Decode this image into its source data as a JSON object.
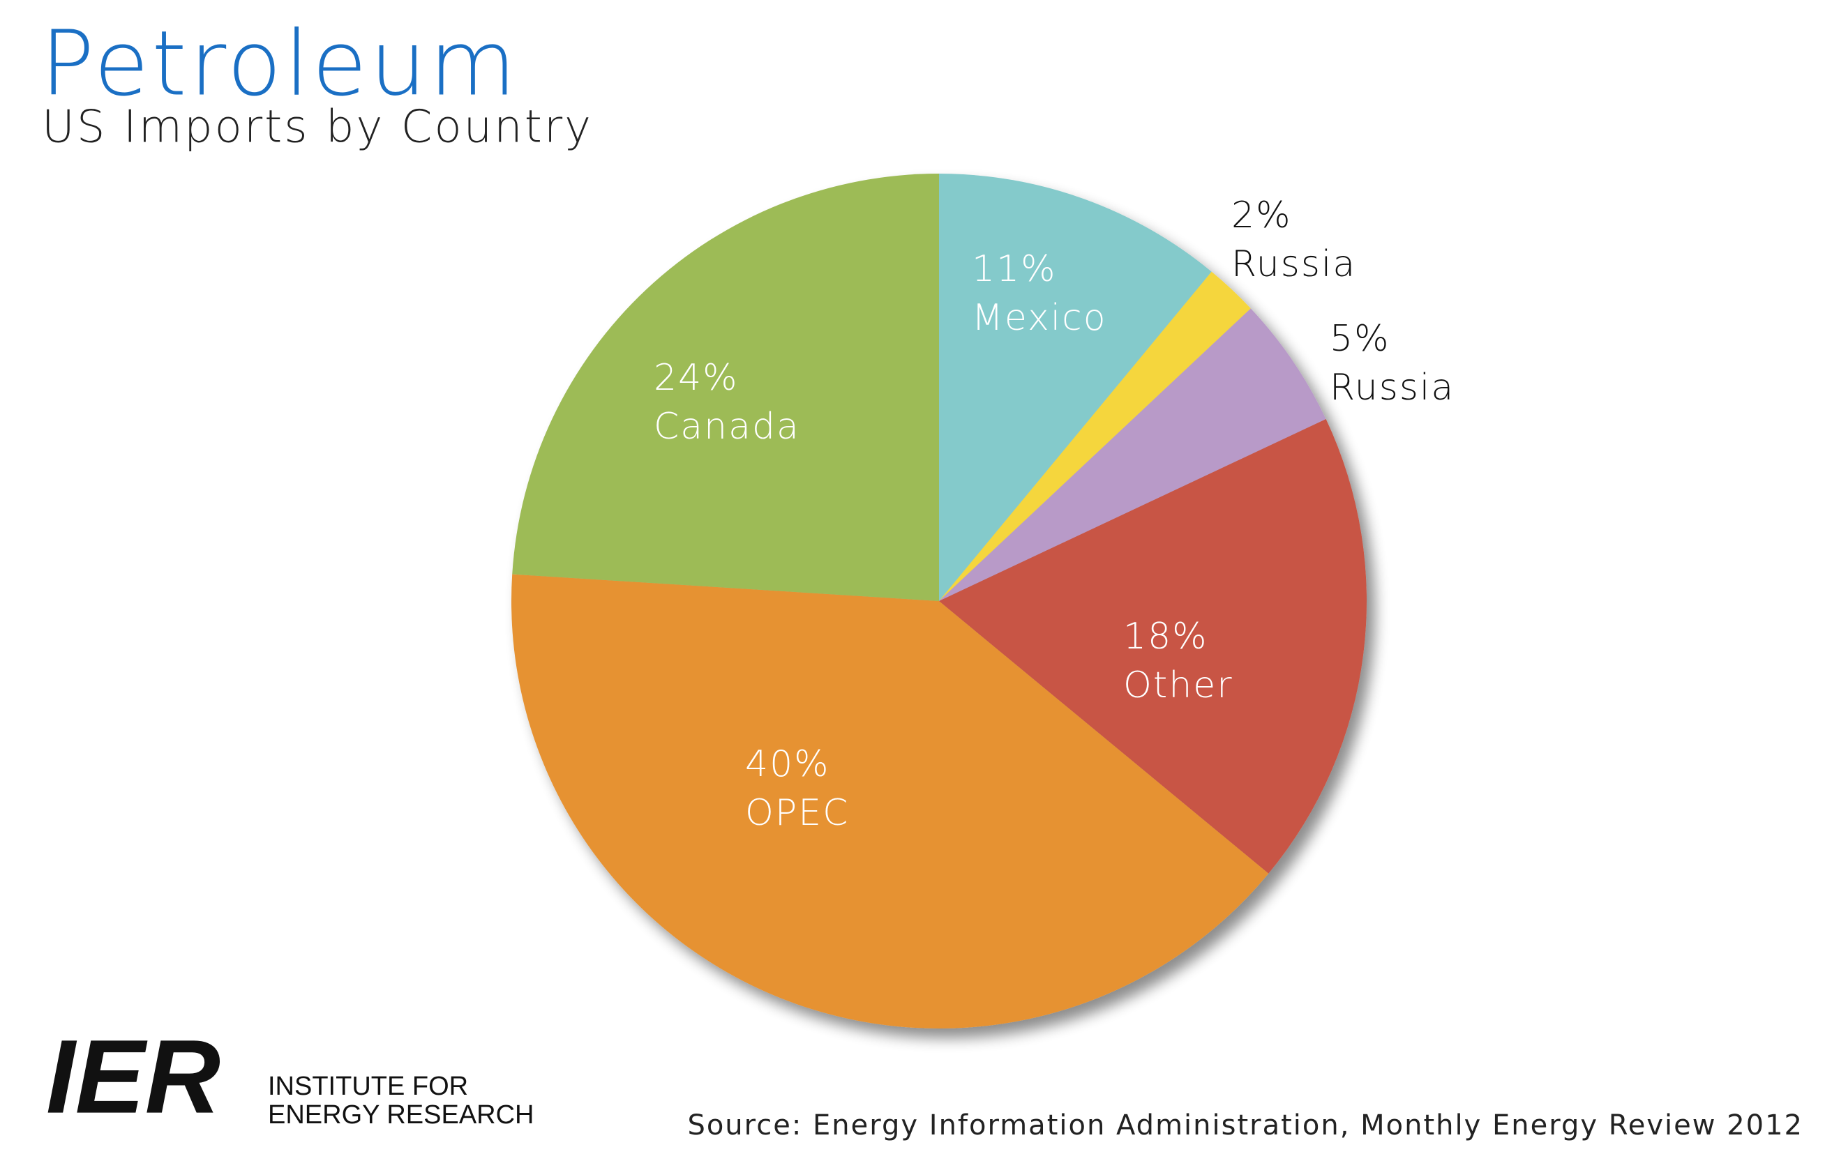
{
  "chart_data": {
    "type": "pie",
    "title": "Petroleum",
    "subtitle": "US Imports by Country",
    "categories": [
      "Mexico",
      "Russia",
      "Russia",
      "Other",
      "OPEC",
      "Canada"
    ],
    "values": [
      11,
      2,
      5,
      18,
      40,
      24
    ],
    "value_labels": [
      "11%",
      "2%",
      "5%",
      "18%",
      "40%",
      "24%"
    ],
    "colors": [
      "#84cacb",
      "#f5d63d",
      "#b89ac8",
      "#c85545",
      "#e69232",
      "#9dbb56"
    ],
    "source": "Source: Energy Information Administration, Monthly Energy Review 2012"
  },
  "logo": {
    "mark": "IER",
    "line1": "INSTITUTE FOR",
    "line2": "ENERGY RESEARCH"
  }
}
